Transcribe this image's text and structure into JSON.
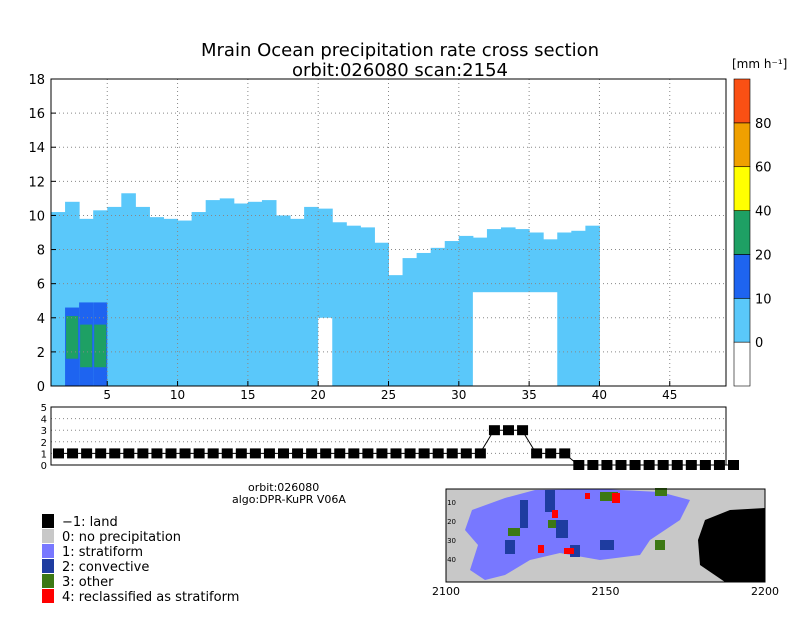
{
  "title_line1": "Mrain Ocean precipitation rate cross section",
  "title_line2": "orbit:026080    scan:2154",
  "colorbar": {
    "unit": "[mm h⁻¹]",
    "ticks": [
      "0",
      "10",
      "20",
      "40",
      "60",
      "80"
    ],
    "colors": [
      "#ffffff",
      "#5ac8fa",
      "#1e64f0",
      "#1ea064",
      "#ffff00",
      "#f0a000",
      "#fa5014"
    ]
  },
  "chart_data": [
    {
      "type": "heatmap",
      "title": "Mrain Ocean precipitation rate cross section",
      "xlim": [
        1,
        49
      ],
      "ylim": [
        0,
        18
      ],
      "x_ticks": [
        5,
        10,
        15,
        20,
        25,
        30,
        35,
        40,
        45
      ],
      "y_ticks": [
        0,
        2,
        4,
        6,
        8,
        10,
        12,
        14,
        16,
        18
      ],
      "grid": true,
      "columns_top_height": [
        10.2,
        10.8,
        9.8,
        10.3,
        10.5,
        11.3,
        10.5,
        9.9,
        9.8,
        9.7,
        10.2,
        10.9,
        11.0,
        10.7,
        10.8,
        10.9,
        10.0,
        9.8,
        10.5,
        10.4,
        9.6,
        9.4,
        9.3,
        8.4,
        6.5,
        7.5,
        7.8,
        8.1,
        8.5,
        8.8,
        8.7,
        9.2,
        9.3,
        9.2,
        9.0,
        8.6,
        9.0,
        9.1,
        9.4
      ],
      "gap_regions": [
        {
          "x": [
            20,
            21
          ],
          "y": [
            0,
            4.0
          ]
        },
        {
          "x": [
            31,
            37
          ],
          "y": [
            0,
            5.5
          ]
        }
      ],
      "convective_columns": [
        2,
        3,
        4
      ],
      "category_scale": "0 | 10 | 20 | 40 | 60 | 80"
    },
    {
      "type": "line",
      "title": "",
      "ylim": [
        0,
        5
      ],
      "y_ticks": [
        0,
        1,
        2,
        3,
        4,
        5
      ],
      "x": [
        1,
        2,
        3,
        4,
        5,
        6,
        7,
        8,
        9,
        10,
        11,
        12,
        13,
        14,
        15,
        16,
        17,
        18,
        19,
        20,
        21,
        22,
        23,
        24,
        25,
        26,
        27,
        28,
        29,
        30,
        31,
        32,
        33,
        34,
        35,
        36,
        37,
        38,
        39,
        40,
        41,
        42,
        43,
        44,
        45,
        46,
        47,
        48,
        49
      ],
      "values": [
        1,
        1,
        1,
        1,
        1,
        1,
        1,
        1,
        1,
        1,
        1,
        1,
        1,
        1,
        1,
        1,
        1,
        1,
        1,
        1,
        1,
        1,
        1,
        1,
        1,
        1,
        1,
        1,
        1,
        1,
        1,
        3,
        3,
        3,
        1,
        1,
        1,
        0,
        0,
        0,
        0,
        0,
        0,
        0,
        0,
        0,
        0,
        0,
        0
      ]
    },
    {
      "type": "heatmap",
      "title": "",
      "x_ticks": [
        "2100",
        "2150",
        "2200"
      ],
      "y_ticks": [
        "10",
        "20",
        "30",
        "40"
      ]
    }
  ],
  "info": {
    "orbit": "orbit:026080",
    "algo": "algo:DPR-KuPR V06A"
  },
  "legend": [
    {
      "label": "−1: land",
      "color": "#000000"
    },
    {
      "label": "0: no precipitation",
      "color": "#c8c8c8"
    },
    {
      "label": "1: stratiform",
      "color": "#7878ff"
    },
    {
      "label": "2: convective",
      "color": "#1e3ca0"
    },
    {
      "label": "3: other",
      "color": "#3c7814"
    },
    {
      "label": "4: reclassified as stratiform",
      "color": "#ff0000"
    }
  ]
}
